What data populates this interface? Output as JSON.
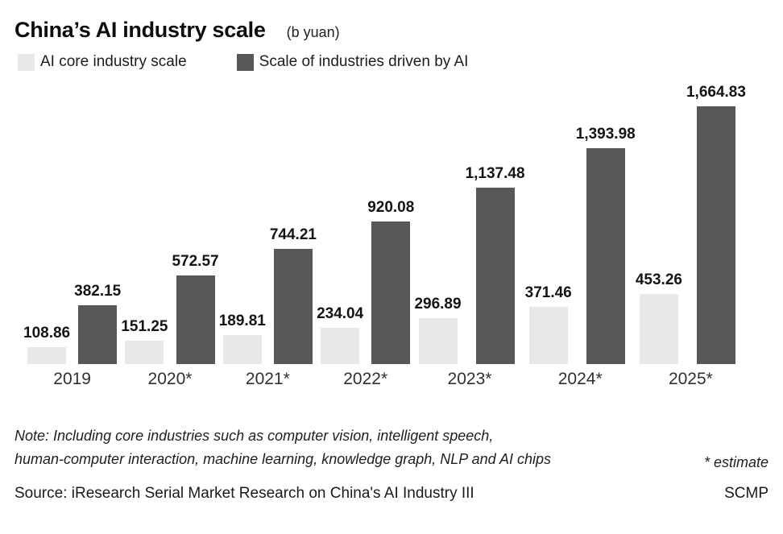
{
  "header": {
    "title": "China’s AI industry scale",
    "units": "(b yuan)"
  },
  "legend": {
    "items": [
      {
        "label": "AI core industry scale",
        "color": "#e8e8e8"
      },
      {
        "label": "Scale of industries driven by AI",
        "color": "#58585a"
      }
    ]
  },
  "chart_data": {
    "type": "bar",
    "title": "China's AI industry scale",
    "units": "b yuan",
    "categories": [
      "2019",
      "2020*",
      "2021*",
      "2022*",
      "2023*",
      "2024*",
      "2025*"
    ],
    "series": [
      {
        "name": "AI core industry scale",
        "color": "#e8e8e8",
        "values": [
          108.86,
          151.25,
          189.81,
          234.04,
          296.89,
          371.46,
          453.26
        ],
        "labels": [
          "108.86",
          "151.25",
          "189.81",
          "234.04",
          "296.89",
          "371.46",
          "453.26"
        ]
      },
      {
        "name": "Scale of industries driven by AI",
        "color": "#58585a",
        "values": [
          382.15,
          572.57,
          744.21,
          920.08,
          1137.48,
          1393.98,
          1664.83
        ],
        "labels": [
          "382.15",
          "572.57",
          "744.21",
          "920.08",
          "1,137.48",
          "1,393.98",
          "1,664.83"
        ]
      }
    ],
    "ylim": [
      0,
      1664.83
    ],
    "grid": false,
    "legend_position": "top",
    "value_labels": "above bars"
  },
  "footer": {
    "note_line1": "Note: Including core industries such as computer vision, intelligent speech,",
    "note_line2": "human-computer interaction, machine learning, knowledge graph, NLP and AI chips",
    "estimate": "* estimate",
    "source": "Source: iResearch Serial Market Research on China's AI Industry III",
    "credit": "SCMP"
  }
}
